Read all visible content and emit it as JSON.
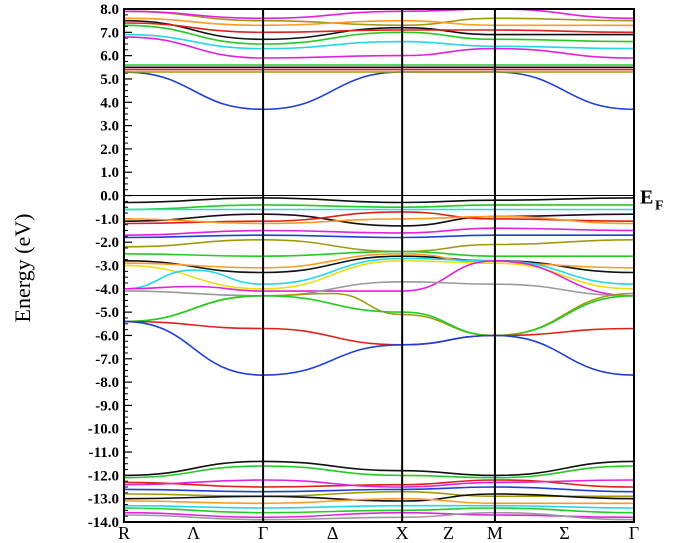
{
  "chart_data": {
    "type": "line",
    "title": "",
    "xlabel": "",
    "ylabel": "Energy (eV)",
    "ylim": [
      -14.0,
      8.0
    ],
    "grid": false,
    "ef_label": "E",
    "ef_sub": "F",
    "ef_value": 0.0,
    "y_ticks": [
      "8.0",
      "7.0",
      "6.0",
      "5.0",
      "4.0",
      "3.0",
      "2.0",
      "1.0",
      "0.0",
      "-1.0",
      "-2.0",
      "-3.0",
      "-4.0",
      "-5.0",
      "-6.0",
      "-7.0",
      "-8.0",
      "-9.0",
      "-10.0",
      "-11.0",
      "-12.0",
      "-13.0",
      "-14.0"
    ],
    "y_tick_values": [
      8,
      7,
      6,
      5,
      4,
      3,
      2,
      1,
      0,
      -1,
      -2,
      -3,
      -4,
      -5,
      -6,
      -7,
      -8,
      -9,
      -10,
      -11,
      -12,
      -13,
      -14
    ],
    "k_points": [
      "R",
      "Γ",
      "X",
      "M",
      "Γ"
    ],
    "k_point_positions": [
      0,
      1,
      2,
      2.667,
      3.667
    ],
    "k_segment_labels": [
      "Λ",
      "Δ",
      "Z",
      "Σ"
    ],
    "k_segment_positions": [
      0.5,
      1.5,
      2.333,
      3.167
    ],
    "colors": {
      "blue": "#1f3fd6",
      "red": "#e0201a",
      "green": "#22cc22",
      "olive": "#a09a10",
      "magenta": "#e022e0",
      "cyan": "#22d8e8",
      "black": "#111111",
      "orange": "#ff9a22",
      "yellow": "#e8e010",
      "gray": "#9a9a9a"
    },
    "series": [
      {
        "color": "blue",
        "x": [
          0,
          1,
          2,
          2.667,
          3.667
        ],
        "values": [
          5.3,
          3.7,
          5.3,
          5.3,
          3.7
        ]
      },
      {
        "color": "magenta",
        "x": [
          0,
          1,
          2,
          2.667,
          3.667
        ],
        "values": [
          6.8,
          5.9,
          6.0,
          6.3,
          5.9
        ]
      },
      {
        "color": "cyan",
        "x": [
          0,
          1,
          2,
          2.667,
          3.667
        ],
        "values": [
          6.9,
          6.3,
          6.6,
          6.4,
          6.3
        ]
      },
      {
        "color": "green",
        "x": [
          0,
          1,
          2,
          2.667,
          3.667
        ],
        "values": [
          7.3,
          6.5,
          7.0,
          6.7,
          6.6
        ]
      },
      {
        "color": "black",
        "x": [
          0,
          1,
          2,
          2.667,
          3.667
        ],
        "values": [
          7.5,
          6.7,
          7.2,
          6.9,
          6.9
        ]
      },
      {
        "color": "red",
        "x": [
          0,
          1,
          2,
          2.667,
          3.667
        ],
        "values": [
          7.4,
          7.0,
          7.1,
          7.1,
          7.0
        ]
      },
      {
        "color": "olive",
        "x": [
          0,
          1,
          2,
          2.667,
          3.667
        ],
        "values": [
          7.9,
          7.5,
          7.3,
          7.6,
          7.5
        ]
      },
      {
        "color": "orange",
        "x": [
          0,
          1,
          2,
          2.667,
          3.667
        ],
        "values": [
          7.6,
          7.3,
          7.5,
          7.3,
          7.3
        ]
      },
      {
        "color": "magenta",
        "x": [
          0,
          1,
          2,
          2.667,
          3.667
        ],
        "values": [
          7.9,
          7.6,
          7.9,
          8.0,
          7.6
        ]
      },
      {
        "color": "green",
        "x": [
          0,
          1,
          2,
          2.667,
          3.667
        ],
        "values": [
          5.6,
          5.6,
          5.6,
          5.6,
          5.6
        ]
      },
      {
        "color": "black",
        "x": [
          0,
          1,
          2,
          2.667,
          3.667
        ],
        "values": [
          5.5,
          5.5,
          5.5,
          5.5,
          5.5
        ]
      },
      {
        "color": "red",
        "x": [
          0,
          1,
          2,
          2.667,
          3.667
        ],
        "values": [
          5.4,
          5.4,
          5.4,
          5.4,
          5.4
        ]
      },
      {
        "color": "olive",
        "x": [
          0,
          1,
          2,
          2.667,
          3.667
        ],
        "values": [
          5.3,
          5.3,
          5.3,
          5.3,
          5.3
        ]
      },
      {
        "color": "black",
        "x": [
          0,
          1,
          2,
          2.667,
          3.667
        ],
        "values": [
          -0.3,
          -0.1,
          -0.3,
          -0.2,
          -0.1
        ]
      },
      {
        "color": "green",
        "x": [
          0,
          1,
          2,
          2.667,
          3.667
        ],
        "values": [
          -0.6,
          -0.4,
          -0.5,
          -0.4,
          -0.4
        ]
      },
      {
        "color": "cyan",
        "x": [
          0,
          1,
          2,
          2.667,
          3.667
        ],
        "values": [
          -0.6,
          -0.6,
          -0.6,
          -0.6,
          -0.6
        ]
      },
      {
        "color": "black",
        "x": [
          0,
          1,
          2,
          2.667,
          3.667
        ],
        "values": [
          -1.1,
          -0.8,
          -1.3,
          -0.9,
          -0.8
        ]
      },
      {
        "color": "red",
        "x": [
          0,
          1,
          2,
          2.667,
          3.667
        ],
        "values": [
          -1.2,
          -1.1,
          -0.7,
          -1.0,
          -1.1
        ]
      },
      {
        "color": "orange",
        "x": [
          0,
          1,
          2,
          2.667,
          3.667
        ],
        "values": [
          -1.0,
          -1.2,
          -1.0,
          -0.9,
          -1.2
        ]
      },
      {
        "color": "magenta",
        "x": [
          0,
          1,
          2,
          2.667,
          3.667
        ],
        "values": [
          -1.7,
          -1.5,
          -1.6,
          -1.4,
          -1.5
        ]
      },
      {
        "color": "blue",
        "x": [
          0,
          1,
          2,
          2.667,
          3.667
        ],
        "values": [
          -1.8,
          -1.7,
          -1.8,
          -1.7,
          -1.7
        ]
      },
      {
        "color": "olive",
        "x": [
          0,
          1,
          2,
          2.667,
          3.667
        ],
        "values": [
          -2.2,
          -1.9,
          -2.4,
          -2.1,
          -1.9
        ]
      },
      {
        "color": "green",
        "x": [
          0,
          1,
          2,
          2.667,
          3.667
        ],
        "values": [
          -2.5,
          -2.6,
          -2.4,
          -2.6,
          -2.6
        ]
      },
      {
        "color": "black",
        "x": [
          0,
          1,
          2,
          2.667,
          3.667
        ],
        "values": [
          -2.8,
          -3.3,
          -2.6,
          -2.8,
          -3.3
        ]
      },
      {
        "color": "orange",
        "x": [
          0,
          1,
          2,
          2.667,
          3.667
        ],
        "values": [
          -2.9,
          -3.1,
          -2.5,
          -2.9,
          -3.1
        ]
      },
      {
        "color": "yellow",
        "x": [
          0,
          1,
          2,
          2.667,
          3.667
        ],
        "values": [
          -3.0,
          -4.0,
          -2.8,
          -2.9,
          -4.0
        ]
      },
      {
        "color": "cyan",
        "x": [
          0,
          0.5,
          1,
          2,
          2.667,
          3.667
        ],
        "values": [
          -4.0,
          -3.2,
          -3.8,
          -2.7,
          -2.8,
          -3.8
        ]
      },
      {
        "color": "magenta",
        "x": [
          0,
          0.5,
          1,
          2,
          2.667,
          3.667
        ],
        "values": [
          -4.0,
          -3.9,
          -4.1,
          -4.1,
          -2.8,
          -4.3
        ]
      },
      {
        "color": "gray",
        "x": [
          0,
          1,
          2,
          2.667,
          3.667
        ],
        "values": [
          -4.1,
          -4.3,
          -3.7,
          -3.8,
          -4.3
        ]
      },
      {
        "color": "olive",
        "x": [
          0,
          1,
          1.5,
          2,
          2.667,
          3.667
        ],
        "values": [
          -5.4,
          -4.3,
          -4.2,
          -5.1,
          -6.0,
          -4.2
        ]
      },
      {
        "color": "green",
        "x": [
          0,
          1,
          2,
          2.667,
          3.667
        ],
        "values": [
          -5.4,
          -4.3,
          -5.0,
          -6.0,
          -4.3
        ]
      },
      {
        "color": "red",
        "x": [
          0,
          1,
          2,
          2.667,
          3.667
        ],
        "values": [
          -5.4,
          -5.7,
          -6.4,
          -6.0,
          -5.7
        ]
      },
      {
        "color": "blue",
        "x": [
          0,
          1,
          2,
          2.667,
          3.667
        ],
        "values": [
          -5.4,
          -7.7,
          -6.4,
          -6.0,
          -7.7
        ]
      },
      {
        "color": "black",
        "x": [
          0,
          1,
          2,
          2.667,
          3.667
        ],
        "values": [
          -12.0,
          -11.4,
          -11.8,
          -12.0,
          -11.4
        ]
      },
      {
        "color": "green",
        "x": [
          0,
          1,
          2,
          2.667,
          3.667
        ],
        "values": [
          -12.1,
          -11.6,
          -12.0,
          -12.1,
          -11.6
        ]
      },
      {
        "color": "red",
        "x": [
          0,
          1,
          2,
          2.667,
          3.667
        ],
        "values": [
          -12.3,
          -12.5,
          -12.4,
          -12.2,
          -12.5
        ]
      },
      {
        "color": "magenta",
        "x": [
          0,
          1,
          2,
          2.667,
          3.667
        ],
        "values": [
          -12.4,
          -12.2,
          -12.5,
          -12.3,
          -12.2
        ]
      },
      {
        "color": "blue",
        "x": [
          0,
          1,
          2,
          2.667,
          3.667
        ],
        "values": [
          -12.6,
          -12.7,
          -12.6,
          -12.5,
          -12.7
        ]
      },
      {
        "color": "olive",
        "x": [
          0,
          1,
          2,
          2.667,
          3.667
        ],
        "values": [
          -12.8,
          -12.9,
          -12.7,
          -12.9,
          -12.9
        ]
      },
      {
        "color": "black",
        "x": [
          0,
          1,
          2,
          2.667,
          3.667
        ],
        "values": [
          -13.0,
          -12.9,
          -13.1,
          -12.8,
          -13.0
        ]
      },
      {
        "color": "orange",
        "x": [
          0,
          1,
          2,
          2.667,
          3.667
        ],
        "values": [
          -13.1,
          -13.2,
          -13.0,
          -13.2,
          -13.2
        ]
      },
      {
        "color": "cyan",
        "x": [
          0,
          1,
          2,
          2.667,
          3.667
        ],
        "values": [
          -13.3,
          -13.4,
          -13.3,
          -13.3,
          -13.4
        ]
      },
      {
        "color": "green",
        "x": [
          0,
          1,
          2,
          2.667,
          3.667
        ],
        "values": [
          -13.4,
          -13.6,
          -13.5,
          -13.4,
          -13.6
        ]
      },
      {
        "color": "magenta",
        "x": [
          0,
          1,
          2,
          2.667,
          3.667
        ],
        "values": [
          -13.6,
          -13.8,
          -13.6,
          -13.7,
          -13.8
        ]
      },
      {
        "color": "gray",
        "x": [
          0,
          1,
          2,
          2.667,
          3.667
        ],
        "values": [
          -13.7,
          -13.9,
          -13.8,
          -13.6,
          -13.9
        ]
      }
    ]
  }
}
